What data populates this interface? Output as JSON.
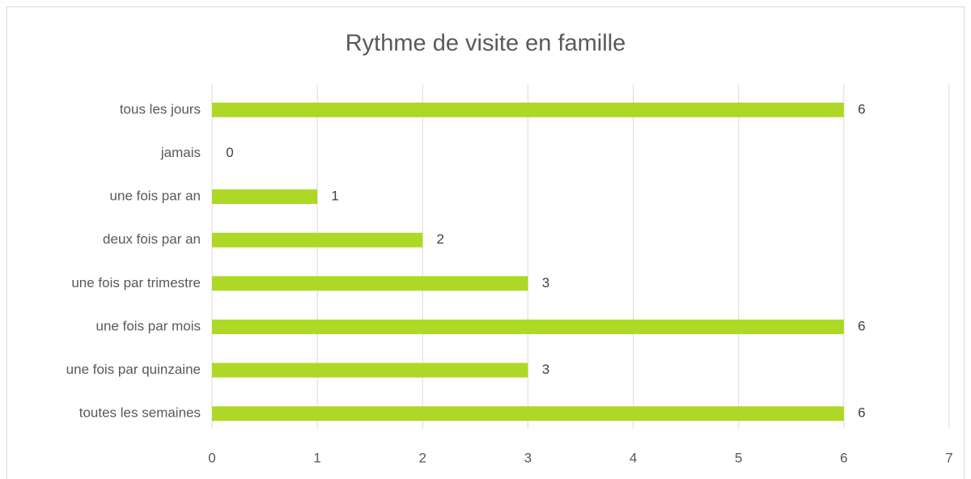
{
  "chart_data": {
    "type": "bar",
    "orientation": "horizontal",
    "title": "Rythme de visite en famille",
    "categories": [
      "tous les jours",
      "jamais",
      "une fois par an",
      "deux fois par an",
      "une fois par trimestre",
      "une fois par mois",
      "une fois par quinzaine",
      "toutes les semaines"
    ],
    "values": [
      6,
      0,
      1,
      2,
      3,
      6,
      3,
      6
    ],
    "color": "#add826",
    "xlim": [
      0,
      7
    ],
    "xticks": [
      0,
      1,
      2,
      3,
      4,
      5,
      6,
      7
    ],
    "grid": true
  }
}
